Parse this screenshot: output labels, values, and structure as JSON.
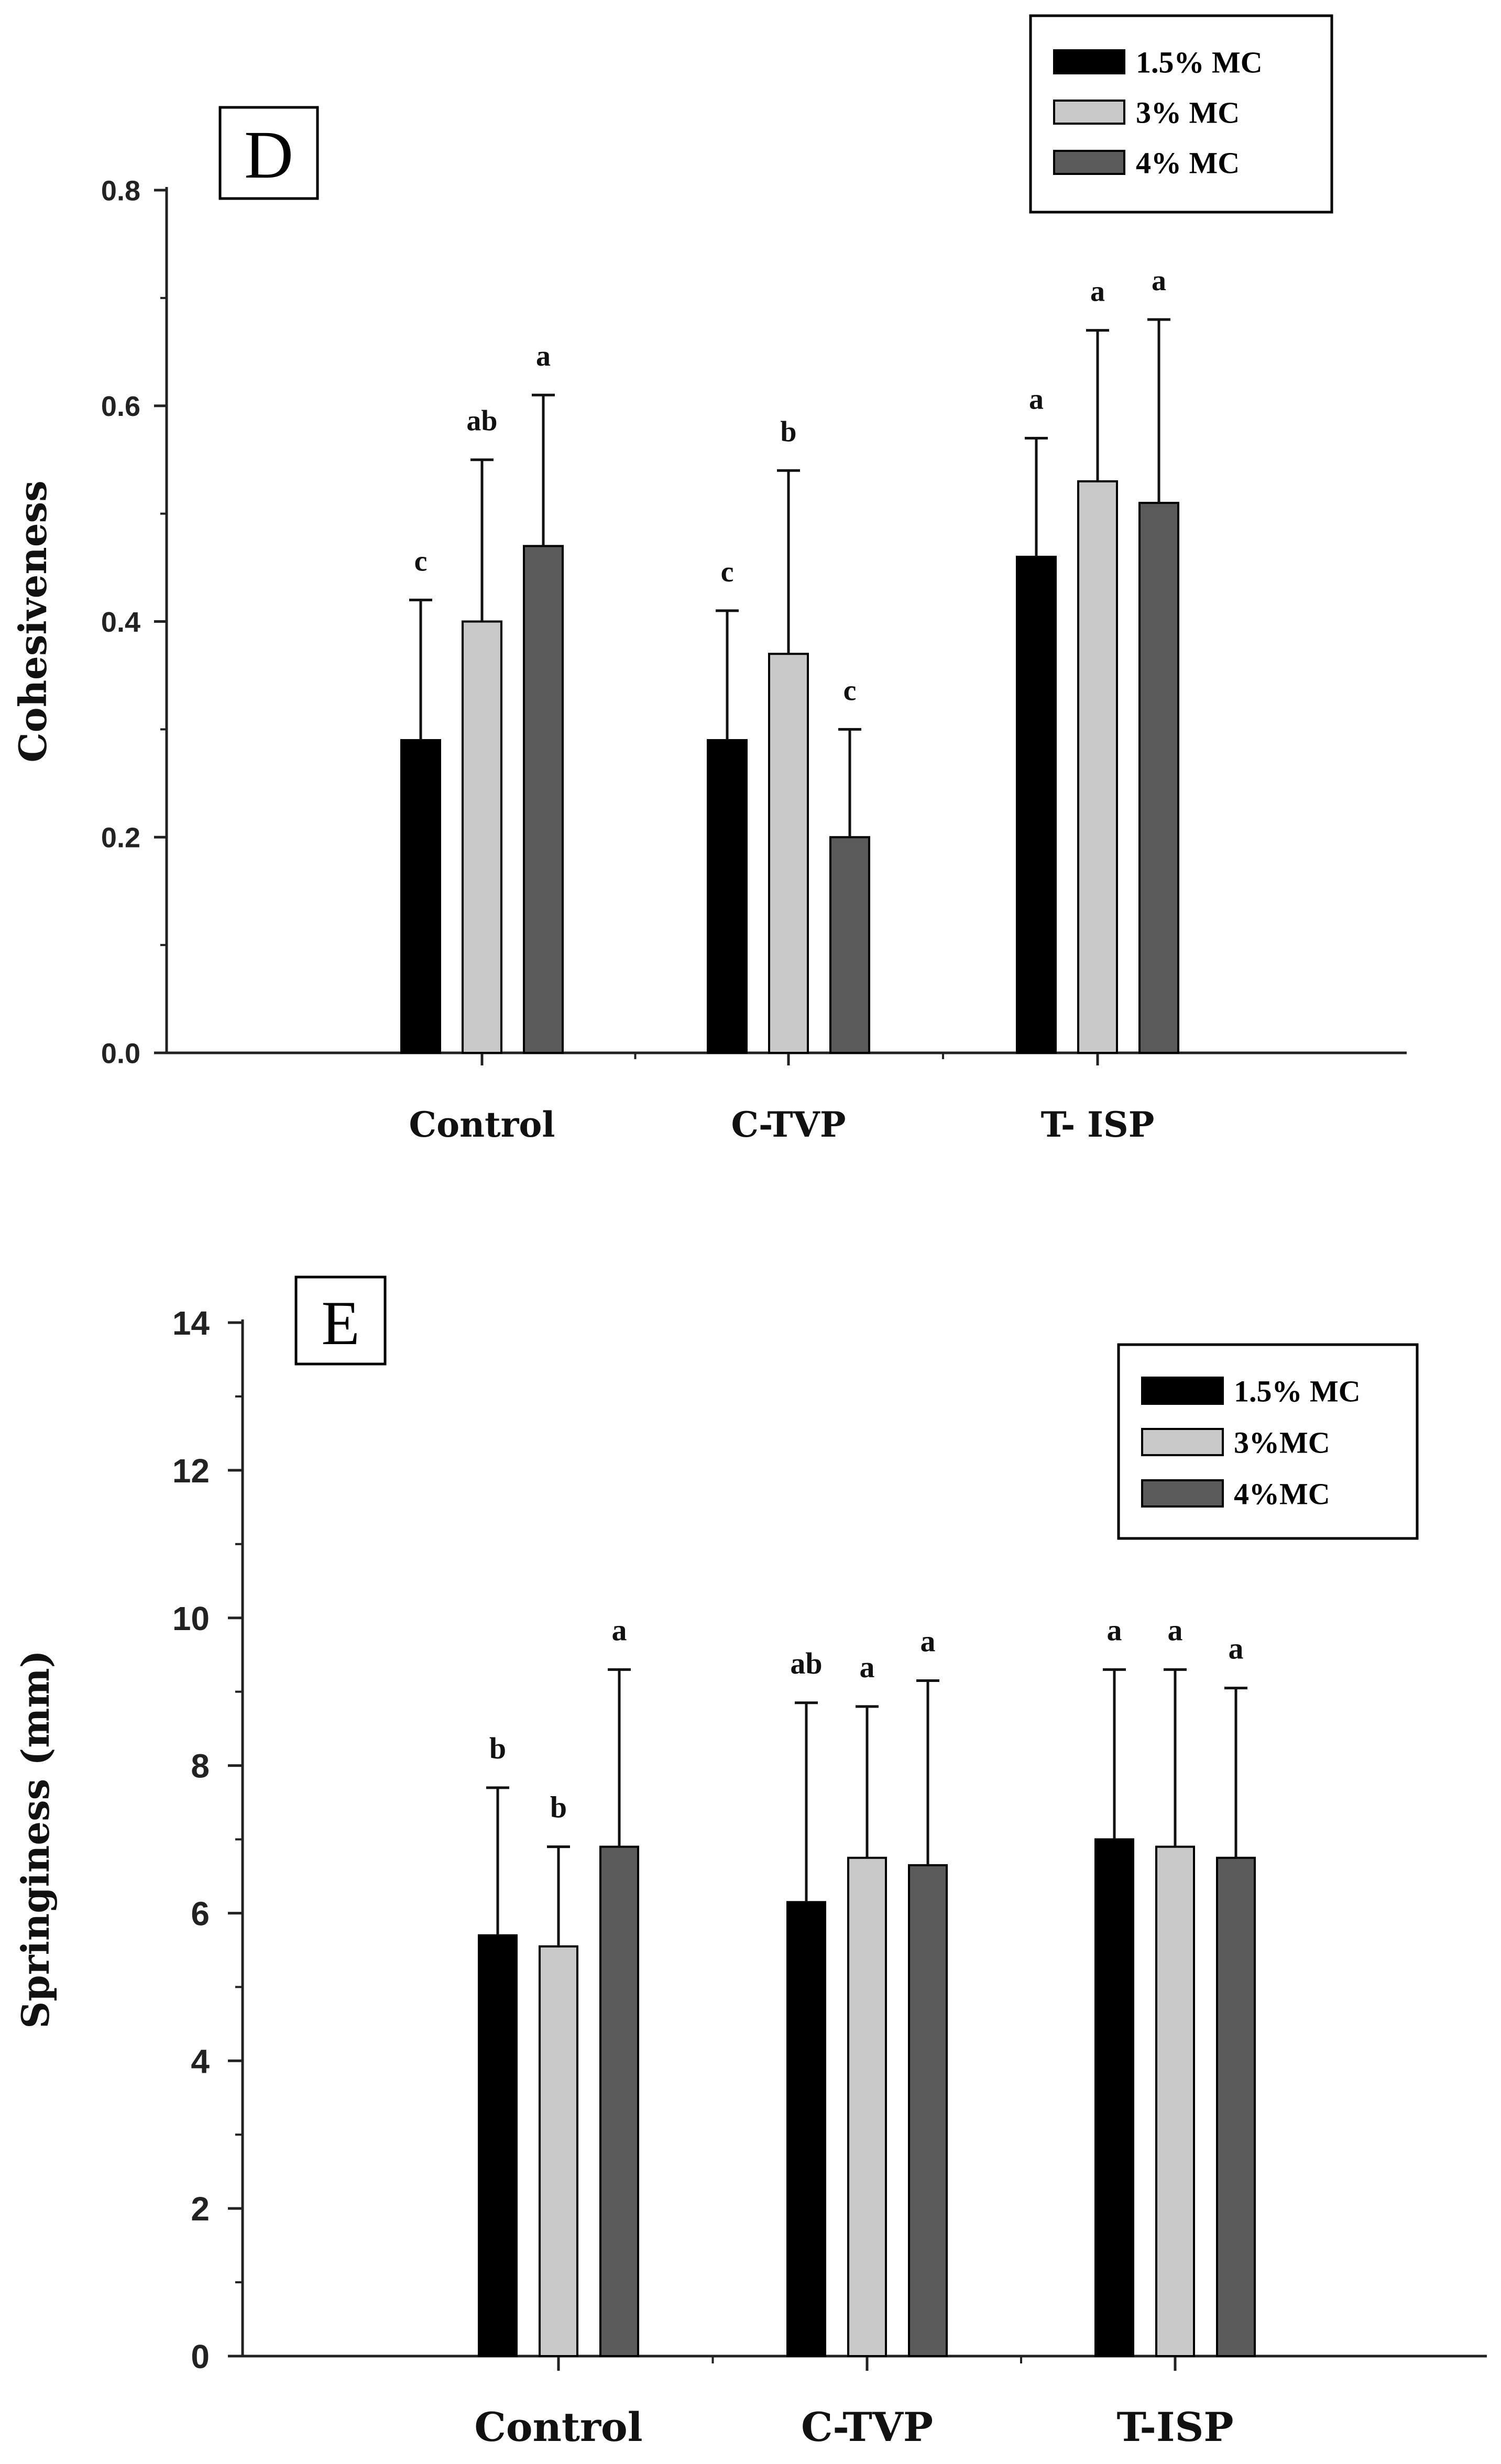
{
  "chart_data": [
    {
      "panel": "D",
      "type": "bar",
      "ylabel": "Cohesiveness",
      "xlabel": "",
      "ylim": [
        0,
        0.8
      ],
      "yticks": [
        0.0,
        0.2,
        0.4,
        0.6,
        0.8
      ],
      "ytick_labels": [
        "0.0",
        "0.2",
        "0.4",
        "0.6",
        "0.8"
      ],
      "categories": [
        "Control",
        "C-TVP",
        "T- ISP"
      ],
      "series": [
        {
          "name": "1.5% MC",
          "color": "#000000",
          "values": [
            0.29,
            0.29,
            0.46
          ],
          "errors": [
            0.13,
            0.12,
            0.11
          ],
          "labels": [
            "c",
            "c",
            "a"
          ]
        },
        {
          "name": "3% MC",
          "color": "#c8c8c8",
          "values": [
            0.4,
            0.37,
            0.53
          ],
          "errors": [
            0.15,
            0.17,
            0.14
          ],
          "labels": [
            "ab",
            "b",
            "a"
          ]
        },
        {
          "name": "4% MC",
          "color": "#5a5a5a",
          "values": [
            0.47,
            0.2,
            0.51
          ],
          "errors": [
            0.14,
            0.1,
            0.17
          ],
          "labels": [
            "a",
            "c",
            "a"
          ]
        }
      ],
      "legend": "top-right"
    },
    {
      "panel": "E",
      "type": "bar",
      "ylabel": "Springiness (mm)",
      "xlabel": "",
      "ylim": [
        0,
        14
      ],
      "yticks": [
        0,
        2,
        4,
        6,
        8,
        10,
        12,
        14
      ],
      "ytick_labels": [
        "0",
        "2",
        "4",
        "6",
        "8",
        "10",
        "12",
        "14"
      ],
      "categories": [
        "Control",
        "C-TVP",
        "T-ISP"
      ],
      "series": [
        {
          "name": "1.5% MC",
          "color": "#000000",
          "values": [
            5.7,
            6.15,
            7.0
          ],
          "errors": [
            2.0,
            2.7,
            2.3
          ],
          "labels": [
            "b",
            "ab",
            "a"
          ]
        },
        {
          "name": "3%MC",
          "color": "#c8c8c8",
          "values": [
            5.55,
            6.75,
            6.9
          ],
          "errors": [
            1.35,
            2.05,
            2.4
          ],
          "labels": [
            "b",
            "a",
            "a"
          ]
        },
        {
          "name": "4%MC",
          "color": "#5a5a5a",
          "values": [
            6.9,
            6.65,
            6.75
          ],
          "errors": [
            2.4,
            2.5,
            2.3
          ],
          "labels": [
            "a",
            "a",
            "a"
          ]
        }
      ],
      "legend": "top-right"
    }
  ]
}
